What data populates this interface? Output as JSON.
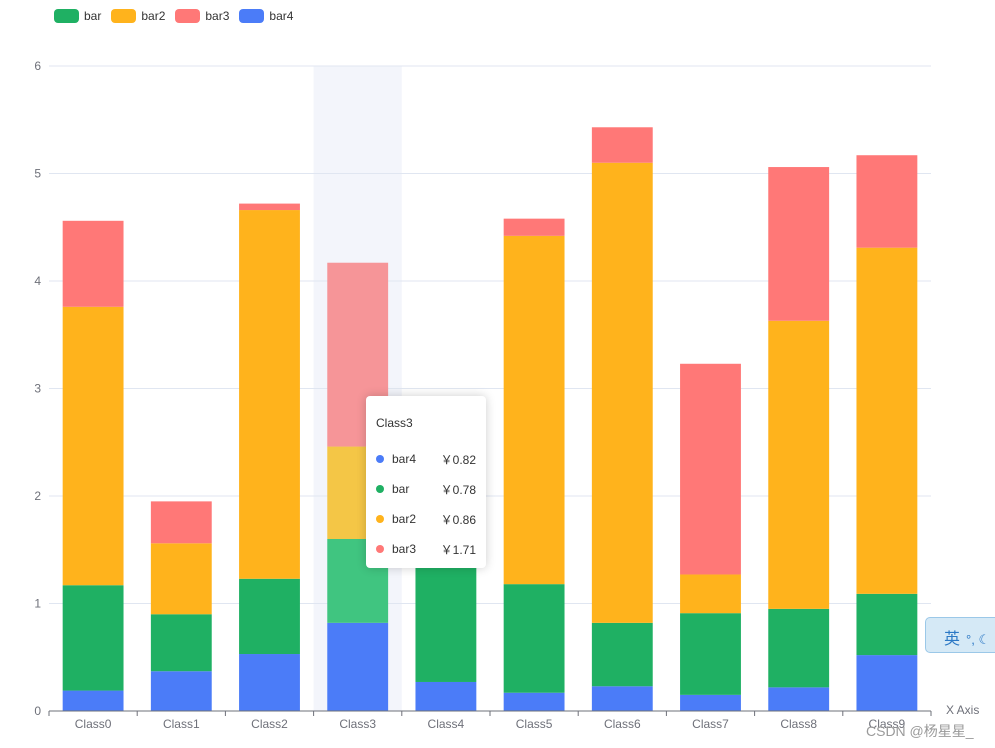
{
  "chart_data": {
    "type": "bar",
    "stacked": true,
    "categories": [
      "Class0",
      "Class1",
      "Class2",
      "Class3",
      "Class4",
      "Class5",
      "Class6",
      "Class7",
      "Class8",
      "Class9"
    ],
    "series": [
      {
        "name": "bar4",
        "color": "#4b7cf8",
        "values": [
          0.19,
          0.37,
          0.53,
          0.82,
          0.27,
          0.17,
          0.23,
          0.15,
          0.22,
          0.52
        ]
      },
      {
        "name": "bar",
        "color": "#1fb063",
        "values": [
          0.98,
          0.53,
          0.7,
          0.78,
          1.29,
          1.01,
          0.59,
          0.76,
          0.73,
          0.57
        ]
      },
      {
        "name": "bar2",
        "color": "#ffb31c",
        "values": [
          2.59,
          0.66,
          3.43,
          0.86,
          0.0,
          3.24,
          4.28,
          0.36,
          2.68,
          3.22
        ]
      },
      {
        "name": "bar3",
        "color": "#ff7877",
        "values": [
          0.8,
          0.39,
          0.06,
          1.71,
          0.0,
          0.16,
          0.33,
          1.96,
          1.43,
          0.86
        ]
      }
    ],
    "legend_order": [
      "bar",
      "bar2",
      "bar3",
      "bar4"
    ],
    "legend_placement": "top-left",
    "y_ticks": [
      0,
      1,
      2,
      3,
      4,
      5,
      6
    ],
    "ylim": [
      0,
      6
    ],
    "xlabel": "X Axis",
    "ylabel": "",
    "grid": true,
    "highlighted_category": "Class3"
  },
  "tooltip": {
    "title": "Class3",
    "rows": [
      {
        "name": "bar4",
        "value": "￥0.82",
        "color": "#4b7cf8"
      },
      {
        "name": "bar",
        "value": "￥0.78",
        "color": "#1fb063"
      },
      {
        "name": "bar2",
        "value": "￥0.86",
        "color": "#ffb31c"
      },
      {
        "name": "bar3",
        "value": "￥1.71",
        "color": "#ff7877"
      }
    ]
  },
  "overlay": {
    "ime_label": "英",
    "ime_symbols": "°, ☾",
    "watermark": "CSDN @杨星星_"
  }
}
